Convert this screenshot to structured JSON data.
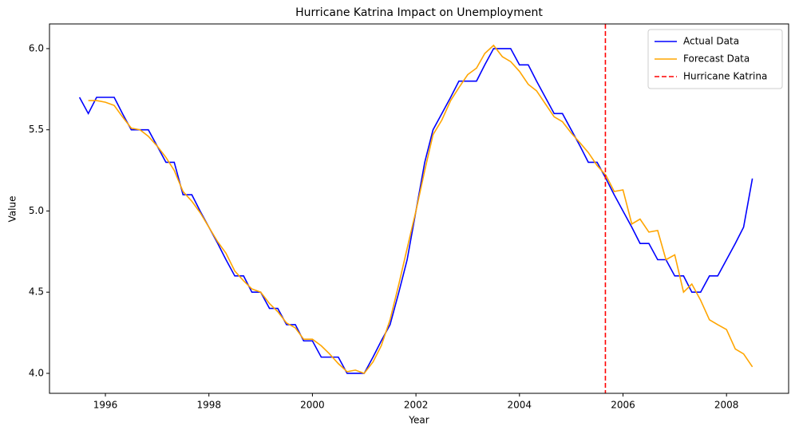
{
  "chart_data": {
    "type": "line",
    "title": "Hurricane Katrina Impact on Unemployment",
    "x_label": "Year",
    "y_label": "Value",
    "x": [
      1995.5,
      1995.67,
      1995.83,
      1996.0,
      1996.17,
      1996.33,
      1996.5,
      1996.67,
      1996.83,
      1997.0,
      1997.17,
      1997.33,
      1997.5,
      1997.67,
      1997.83,
      1998.0,
      1998.17,
      1998.33,
      1998.5,
      1998.67,
      1998.83,
      1999.0,
      1999.17,
      1999.33,
      1999.5,
      1999.67,
      1999.83,
      2000.0,
      2000.17,
      2000.33,
      2000.5,
      2000.67,
      2000.83,
      2001.0,
      2001.17,
      2001.33,
      2001.5,
      2001.67,
      2001.83,
      2002.0,
      2002.17,
      2002.33,
      2002.5,
      2002.67,
      2002.83,
      2003.0,
      2003.17,
      2003.33,
      2003.5,
      2003.67,
      2003.83,
      2004.0,
      2004.17,
      2004.33,
      2004.5,
      2004.67,
      2004.83,
      2005.0,
      2005.17,
      2005.33,
      2005.5,
      2005.67,
      2005.83,
      2006.0,
      2006.17,
      2006.33,
      2006.5,
      2006.67,
      2006.83,
      2007.0,
      2007.17,
      2007.33,
      2007.5,
      2007.67,
      2007.83,
      2008.0,
      2008.17,
      2008.33,
      2008.5
    ],
    "series": [
      {
        "name": "Actual Data",
        "color": "#0000ff",
        "values": [
          5.7,
          5.6,
          5.7,
          5.7,
          5.7,
          5.6,
          5.5,
          5.5,
          5.5,
          5.4,
          5.3,
          5.3,
          5.1,
          5.1,
          5.0,
          4.9,
          4.8,
          4.7,
          4.6,
          4.6,
          4.5,
          4.5,
          4.4,
          4.4,
          4.3,
          4.3,
          4.2,
          4.2,
          4.1,
          4.1,
          4.1,
          4.0,
          4.0,
          4.0,
          4.1,
          4.2,
          4.3,
          4.5,
          4.7,
          5.0,
          5.3,
          5.5,
          5.6,
          5.7,
          5.8,
          5.8,
          5.8,
          5.9,
          6.0,
          6.0,
          6.0,
          5.9,
          5.9,
          5.8,
          5.7,
          5.6,
          5.6,
          5.5,
          5.4,
          5.3,
          5.3,
          5.2,
          5.1,
          5.0,
          4.9,
          4.8,
          4.8,
          4.7,
          4.7,
          4.6,
          4.6,
          4.5,
          4.5,
          4.6,
          4.6,
          4.7,
          4.8,
          4.9,
          5.2
        ]
      },
      {
        "name": "Forecast Data",
        "color": "#ffa500",
        "values": [
          null,
          5.68,
          5.68,
          5.67,
          5.65,
          5.58,
          5.51,
          5.5,
          5.46,
          5.4,
          5.33,
          5.25,
          5.12,
          5.06,
          4.99,
          4.9,
          4.81,
          4.74,
          4.63,
          4.57,
          4.52,
          4.5,
          4.43,
          4.38,
          4.31,
          4.28,
          4.21,
          4.21,
          4.17,
          4.12,
          4.06,
          4.01,
          4.02,
          4.0,
          4.07,
          4.17,
          4.33,
          4.55,
          4.77,
          5.0,
          5.25,
          5.47,
          5.56,
          5.68,
          5.76,
          5.84,
          5.88,
          5.97,
          6.02,
          5.95,
          5.92,
          5.86,
          5.78,
          5.74,
          5.66,
          5.58,
          5.55,
          5.48,
          5.42,
          5.36,
          5.28,
          5.22,
          5.12,
          5.13,
          4.92,
          4.95,
          4.87,
          4.88,
          4.7,
          4.73,
          4.5,
          4.55,
          4.45,
          4.33,
          4.3,
          4.27,
          4.15,
          4.12,
          4.04
        ]
      }
    ],
    "vline": {
      "name": "Hurricane Katrina",
      "x": 2005.66,
      "color": "#ff0000"
    },
    "xlim": [
      1994.92,
      2009.2
    ],
    "xticks": [
      1996,
      1998,
      2000,
      2002,
      2004,
      2006,
      2008
    ],
    "ylim": [
      3.877,
      6.152
    ],
    "yticks": [
      {
        "value": 4,
        "label": "4.0"
      },
      4.5,
      {
        "value": 5,
        "label": "5.0"
      },
      5.5,
      {
        "value": 6,
        "label": "6.0"
      }
    ],
    "legend": "upper right"
  }
}
